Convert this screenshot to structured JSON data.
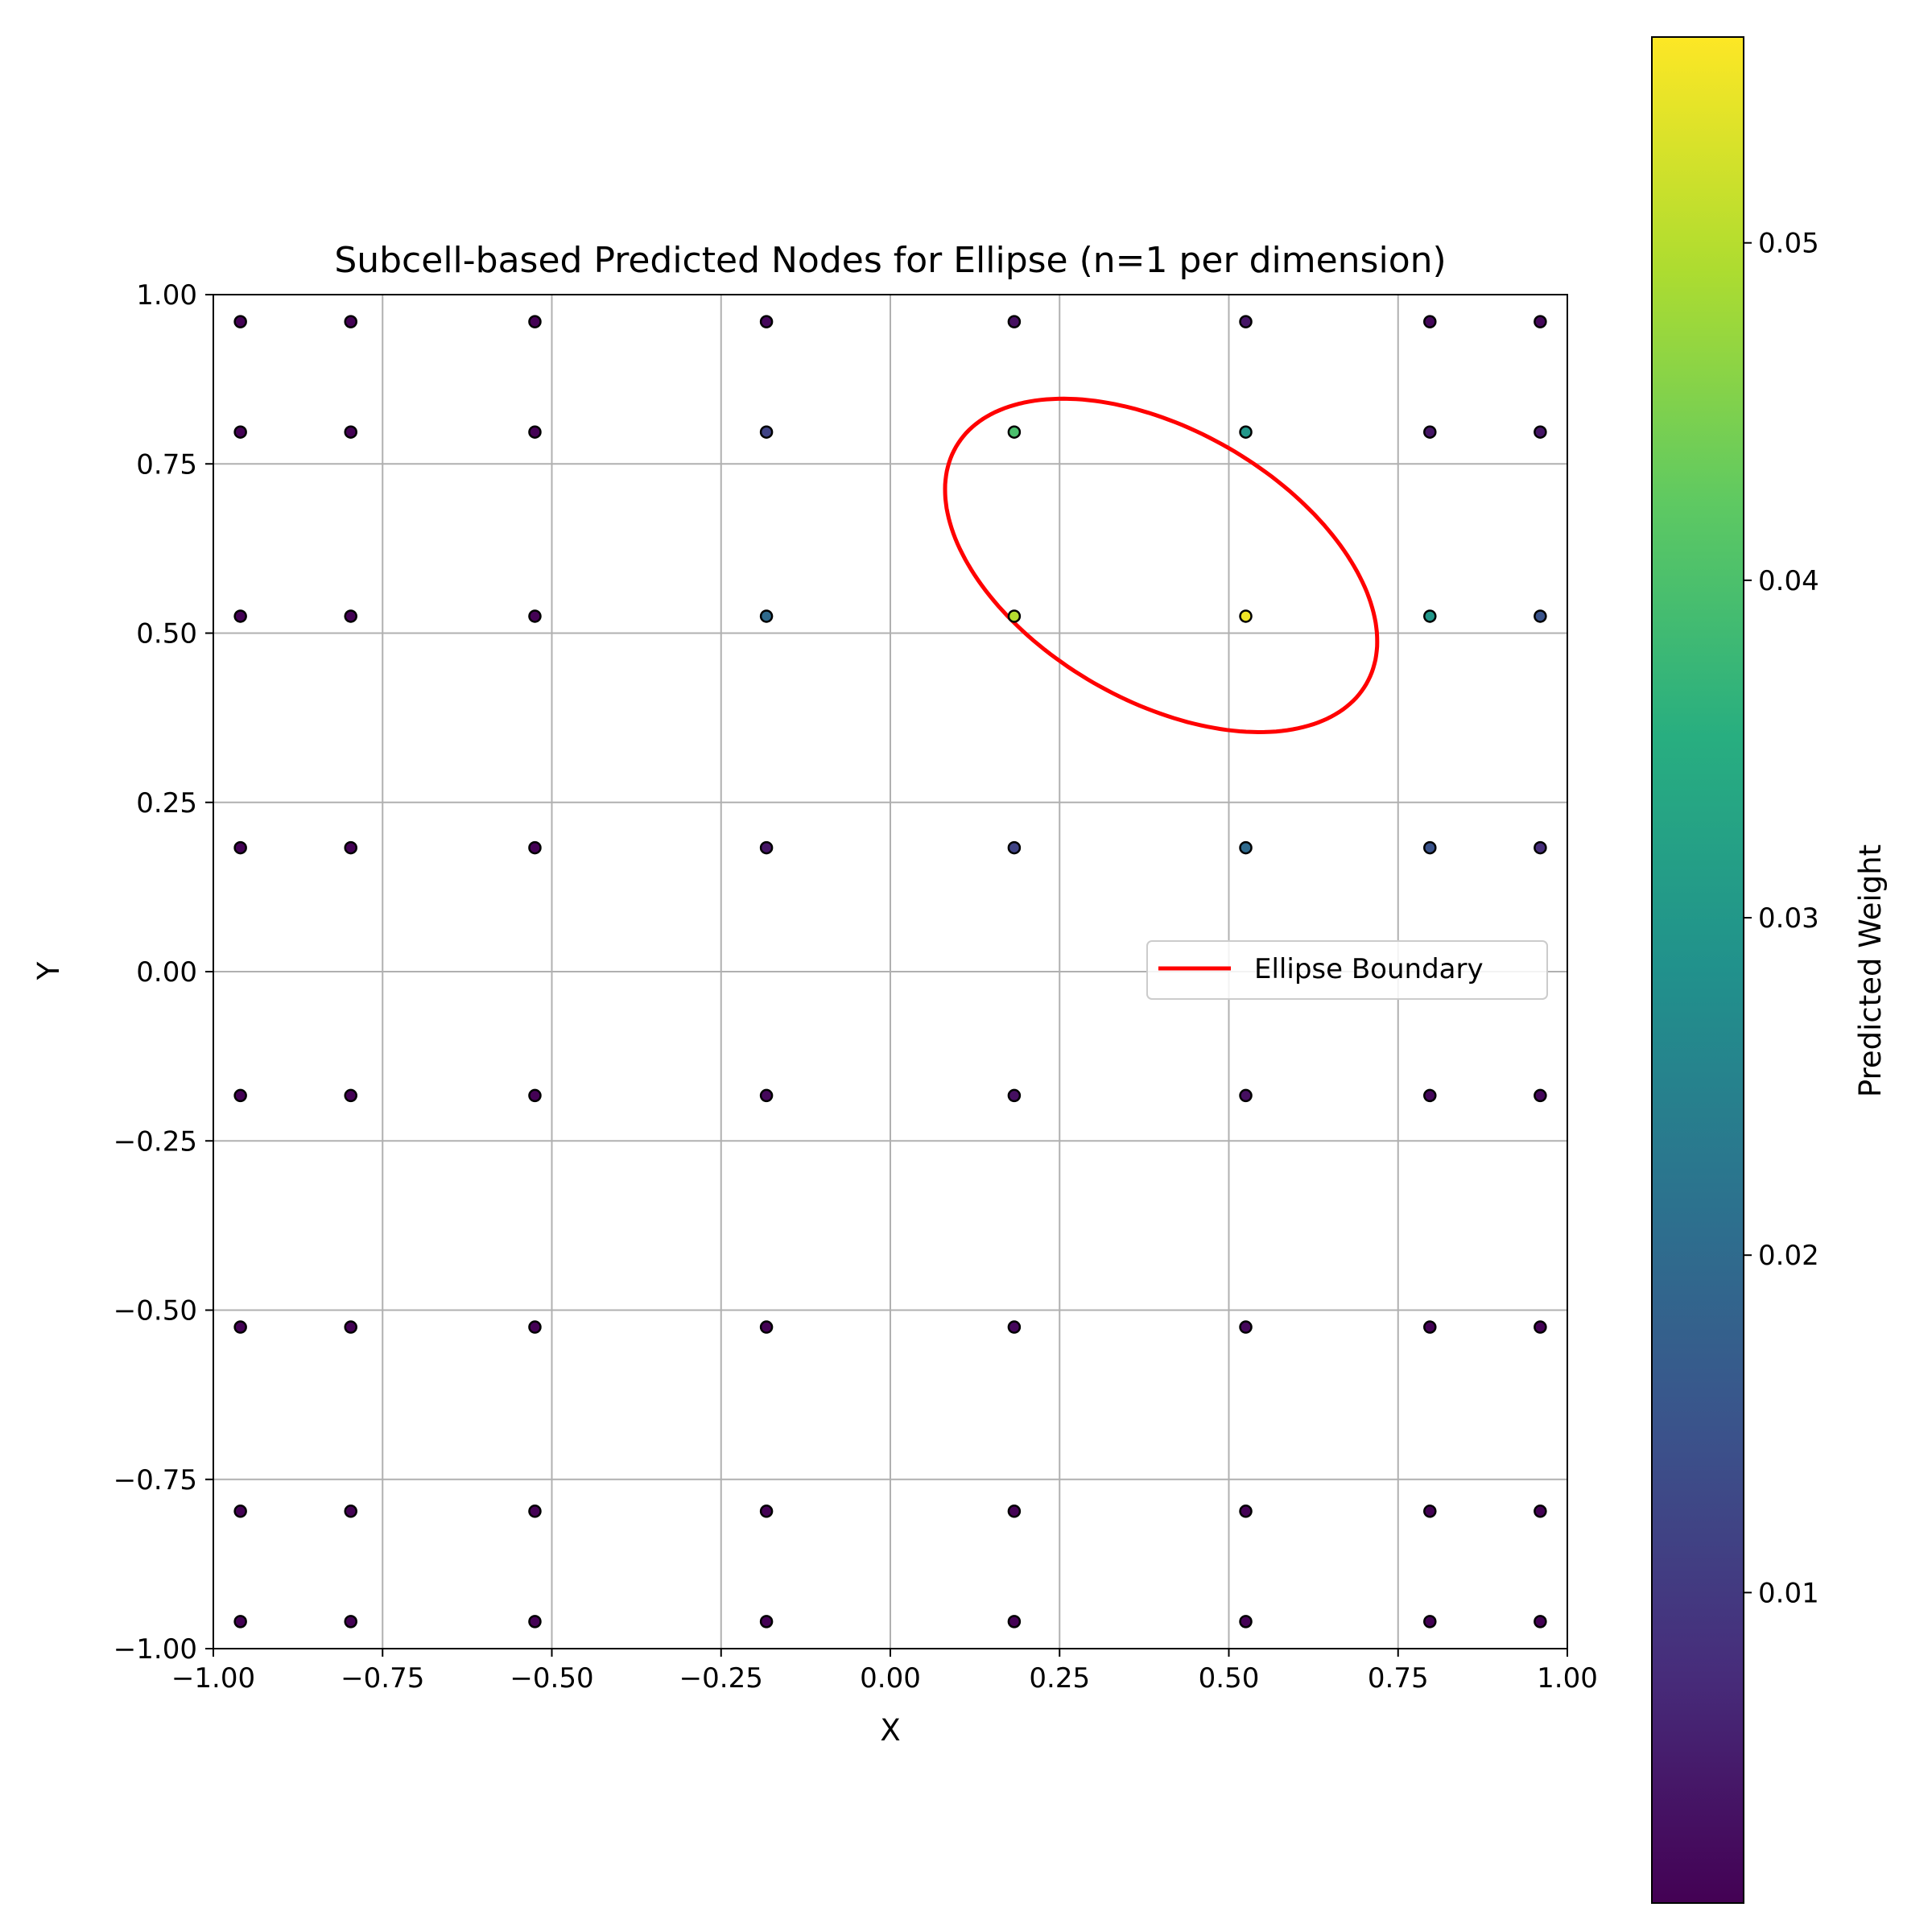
{
  "chart_data": {
    "type": "scatter",
    "title": "Subcell-based Predicted Nodes for Ellipse (n=1 per dimension)",
    "xlabel": "X",
    "ylabel": "Y",
    "xlim": [
      -1.0,
      1.0
    ],
    "ylim": [
      -1.0,
      1.0
    ],
    "grid": true,
    "legend_position": "center-right",
    "x_ticks": [
      "−1.00",
      "−0.75",
      "−0.50",
      "−0.25",
      "0.00",
      "0.25",
      "0.50",
      "0.75",
      "1.00"
    ],
    "y_ticks": [
      "−1.00",
      "−0.75",
      "−0.50",
      "−0.25",
      "0.00",
      "0.25",
      "0.50",
      "0.75",
      "1.00"
    ],
    "x_tick_values": [
      -1.0,
      -0.75,
      -0.5,
      -0.25,
      0.0,
      0.25,
      0.5,
      0.75,
      1.0
    ],
    "y_tick_values": [
      -1.0,
      -0.75,
      -0.5,
      -0.25,
      0.0,
      0.25,
      0.5,
      0.75,
      1.0
    ],
    "node_x": [
      -0.96,
      -0.797,
      -0.525,
      -0.183,
      0.183,
      0.525,
      0.797,
      0.96
    ],
    "node_y": [
      0.96,
      0.797,
      0.525,
      0.183,
      -0.183,
      -0.525,
      -0.797,
      -0.96
    ],
    "weights": [
      [
        0.001,
        0.001,
        0.001,
        0.002,
        0.003,
        0.004,
        0.002,
        0.002
      ],
      [
        0.001,
        0.001,
        0.001,
        0.012,
        0.04,
        0.03,
        0.004,
        0.004
      ],
      [
        0.001,
        0.001,
        0.001,
        0.02,
        0.05,
        0.055,
        0.03,
        0.015
      ],
      [
        0.001,
        0.001,
        0.001,
        0.004,
        0.012,
        0.02,
        0.015,
        0.008
      ],
      [
        0.001,
        0.001,
        0.001,
        0.002,
        0.003,
        0.003,
        0.002,
        0.002
      ],
      [
        0.001,
        0.001,
        0.001,
        0.001,
        0.002,
        0.002,
        0.001,
        0.001
      ],
      [
        0.001,
        0.001,
        0.001,
        0.001,
        0.001,
        0.001,
        0.001,
        0.001
      ],
      [
        0.001,
        0.001,
        0.001,
        0.001,
        0.001,
        0.001,
        0.001,
        0.001
      ]
    ],
    "ellipse": {
      "center": [
        0.4,
        0.6
      ],
      "semi_major": 0.35,
      "semi_minor": 0.2,
      "rotation_deg": -30
    },
    "series": [
      {
        "name": "Ellipse Boundary",
        "color": "#ff0000"
      }
    ],
    "colorbar": {
      "label": "Predicted Weight",
      "colormap": "viridis",
      "range": [
        0.0008,
        0.0561
      ],
      "ticks": [
        "0.01",
        "0.02",
        "0.03",
        "0.04",
        "0.05"
      ],
      "tick_values": [
        0.01,
        0.02,
        0.03,
        0.04,
        0.05
      ]
    }
  }
}
